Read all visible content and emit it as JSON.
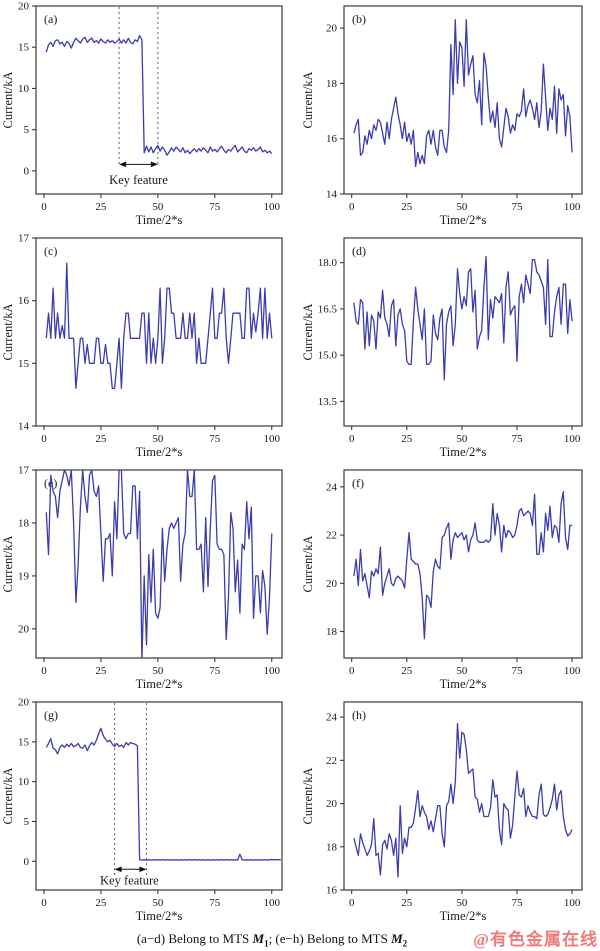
{
  "figure": {
    "caption": {
      "part1": "(a−d) Belong to MTS ",
      "m1": "M",
      "sub1": "1",
      "part2": "; (e−h) Belong to MTS ",
      "m2": "M",
      "sub2": "2"
    },
    "watermark": {
      "text": "@有色金属在线",
      "color": "#ed7d7d"
    }
  },
  "style": {
    "line_color": "#3c3cae",
    "axis_color": "#3a3a3a",
    "annotation_color": "#6f6f6f",
    "arrow_color": "#111111"
  },
  "chart_data": [
    {
      "id": "a",
      "panel_label": "(a)",
      "type": "line",
      "xlabel": "Time/2*s",
      "ylabel": "Current/kA",
      "xlim": [
        -3.5,
        104.5
      ],
      "xticks": [
        0,
        25,
        50,
        75,
        100
      ],
      "xtick_labels": [
        "0",
        "25",
        "50",
        "75",
        "100"
      ],
      "ylim_bottom": -2.8,
      "ylim_top": 20,
      "yticks": [
        0,
        5,
        10,
        15,
        20
      ],
      "ytick_labels": [
        "0",
        "5",
        "10",
        "15",
        "20"
      ],
      "margin_left": 36,
      "x_start": 1,
      "grid": false,
      "legend": "none",
      "annotation": {
        "label": "Key feature",
        "line_x": [
          33,
          50
        ],
        "line_y_bottom": 0.5,
        "arrow_y": 0.8,
        "label_x": 41.5,
        "label_y": -1.6
      },
      "values": [
        14.4,
        15.3,
        15.6,
        15.1,
        15.8,
        15.9,
        15.4,
        15.6,
        15.1,
        15.7,
        15.5,
        14.9,
        15.6,
        16.1,
        15.8,
        15.5,
        16.0,
        16.2,
        15.6,
        15.9,
        16.1,
        15.6,
        15.8,
        15.5,
        16.0,
        15.7,
        15.5,
        15.9,
        15.6,
        15.8,
        15.5,
        15.7,
        16.0,
        15.5,
        15.9,
        15.5,
        16.1,
        15.6,
        15.4,
        15.9,
        15.7,
        16.4,
        15.9,
        2.2,
        3.0,
        2.3,
        2.9,
        2.2,
        2.7,
        3.1,
        2.4,
        2.9,
        2.5,
        1.9,
        2.3,
        2.8,
        2.4,
        2.9,
        2.6,
        2.3,
        2.8,
        2.2,
        2.5,
        2.1,
        2.4,
        2.7,
        2.3,
        2.7,
        2.4,
        2.8,
        2.5,
        2.2,
        2.9,
        2.4,
        2.6,
        2.3,
        2.7,
        3.0,
        2.5,
        2.2,
        2.6,
        2.4,
        2.8,
        3.1,
        2.3,
        2.6,
        2.9,
        2.4,
        2.2,
        2.7,
        2.5,
        2.8,
        2.4,
        2.6,
        2.9,
        2.3,
        2.5,
        2.2,
        2.4,
        2.1
      ]
    },
    {
      "id": "b",
      "panel_label": "(b)",
      "type": "line",
      "xlabel": "Time/2*s",
      "ylabel": "Current/kA",
      "xlim": [
        -3.5,
        104.5
      ],
      "xticks": [
        0,
        25,
        50,
        75,
        100
      ],
      "xtick_labels": [
        "0",
        "25",
        "50",
        "75",
        "100"
      ],
      "ylim_bottom": 14,
      "ylim_top": 20.8,
      "yticks": [
        14,
        16,
        18,
        20
      ],
      "ytick_labels": [
        "14",
        "16",
        "18",
        "20"
      ],
      "margin_left": 44,
      "x_start": 1,
      "grid": false,
      "legend": "none",
      "values": [
        16.2,
        16.5,
        16.7,
        15.4,
        15.5,
        16.1,
        15.8,
        16.3,
        16.0,
        16.5,
        16.3,
        16.7,
        16.6,
        16.2,
        15.8,
        16.6,
        16.0,
        16.7,
        17.1,
        17.5,
        16.9,
        16.5,
        16.0,
        16.6,
        15.9,
        16.2,
        15.8,
        16.3,
        15.0,
        15.5,
        15.1,
        15.4,
        15.1,
        16.1,
        16.3,
        15.8,
        16.3,
        15.7,
        15.4,
        16.3,
        16.3,
        15.7,
        15.5,
        16.3,
        19.4,
        17.6,
        20.3,
        18.0,
        19.5,
        19.3,
        17.9,
        20.3,
        18.3,
        18.7,
        19.0,
        17.6,
        17.3,
        18.1,
        16.5,
        19.1,
        18.6,
        17.5,
        16.6,
        17.0,
        16.4,
        17.3,
        16.0,
        15.7,
        16.4,
        17.1,
        16.8,
        16.2,
        16.5,
        16.3,
        16.9,
        16.8,
        17.0,
        17.8,
        16.8,
        17.2,
        17.4,
        17.1,
        16.7,
        17.3,
        16.4,
        17.0,
        18.7,
        17.5,
        16.3,
        17.1,
        16.7,
        17.9,
        16.2,
        17.8,
        17.4,
        17.6,
        16.1,
        17.2,
        16.8,
        15.5
      ]
    },
    {
      "id": "c",
      "panel_label": "(c)",
      "type": "line",
      "xlabel": "Time/2*s",
      "ylabel": "Current/kA",
      "xlim": [
        -3.5,
        104.5
      ],
      "xticks": [
        0,
        25,
        50,
        75,
        100
      ],
      "xtick_labels": [
        "0",
        "25",
        "50",
        "75",
        "100"
      ],
      "ylim_bottom": 14,
      "ylim_top": 17,
      "yticks": [
        14,
        15,
        16,
        17
      ],
      "ytick_labels": [
        "14",
        "15",
        "16",
        "17"
      ],
      "margin_left": 36,
      "x_start": 1,
      "grid": false,
      "legend": "none",
      "values": [
        15.4,
        15.8,
        15.4,
        16.2,
        15.4,
        15.8,
        15.4,
        15.6,
        15.4,
        16.6,
        15.4,
        15.4,
        15.4,
        14.6,
        15.0,
        15.4,
        15.4,
        15.0,
        15.3,
        15.0,
        15.0,
        15.0,
        15.4,
        15.4,
        15.0,
        15.0,
        15.3,
        15.0,
        15.0,
        14.6,
        14.6,
        15.0,
        15.4,
        14.6,
        15.4,
        15.8,
        15.8,
        15.4,
        15.4,
        15.4,
        15.4,
        15.4,
        15.8,
        15.8,
        15.0,
        15.8,
        15.0,
        15.4,
        15.0,
        15.4,
        16.2,
        15.0,
        15.4,
        16.2,
        16.2,
        15.8,
        15.8,
        15.4,
        15.4,
        15.4,
        15.8,
        15.4,
        15.4,
        15.8,
        15.4,
        15.8,
        15.0,
        15.4,
        15.0,
        15.0,
        15.0,
        15.4,
        15.8,
        16.2,
        15.4,
        15.4,
        15.8,
        15.8,
        16.2,
        15.4,
        15.0,
        15.4,
        15.8,
        15.8,
        15.8,
        15.8,
        15.4,
        15.4,
        16.2,
        16.2,
        15.4,
        15.8,
        15.5,
        15.8,
        16.2,
        15.4,
        16.2,
        15.4,
        15.8,
        15.4
      ]
    },
    {
      "id": "d",
      "panel_label": "(d)",
      "type": "line",
      "xlabel": "Time/2*s",
      "ylabel": "Current/kA",
      "xlim": [
        -3.5,
        104.5
      ],
      "xticks": [
        0,
        25,
        50,
        75,
        100
      ],
      "xtick_labels": [
        "0",
        "25",
        "50",
        "75",
        "100"
      ],
      "ylim_bottom": 12.7,
      "ylim_top": 18.8,
      "yticks": [
        13.5,
        15.0,
        16.5,
        18.0
      ],
      "ytick_labels": [
        "13.5",
        "15.0",
        "16.5",
        "18.0"
      ],
      "margin_left": 44,
      "x_start": 1,
      "grid": false,
      "legend": "none",
      "values": [
        16.7,
        16.1,
        16.0,
        16.8,
        16.7,
        15.2,
        16.4,
        15.3,
        16.3,
        16.1,
        15.2,
        16.4,
        16.2,
        17.1,
        16.2,
        16.0,
        15.6,
        16.6,
        16.8,
        15.3,
        16.3,
        16.5,
        16.0,
        15.8,
        14.8,
        14.7,
        14.7,
        16.1,
        17.2,
        16.5,
        16.0,
        15.5,
        16.5,
        14.7,
        14.7,
        14.8,
        16.3,
        15.7,
        15.5,
        16.2,
        16.5,
        14.2,
        16.0,
        16.4,
        16.6,
        15.3,
        16.0,
        17.8,
        17.0,
        16.5,
        16.9,
        16.6,
        17.7,
        17.8,
        16.4,
        17.1,
        15.2,
        15.6,
        15.8,
        17.2,
        18.2,
        15.5,
        16.8,
        16.2,
        16.9,
        16.8,
        16.7,
        17.0,
        15.4,
        17.2,
        17.7,
        16.3,
        16.5,
        16.6,
        14.8,
        16.9,
        17.3,
        16.7,
        17.6,
        17.3,
        17.0,
        18.1,
        18.1,
        17.7,
        17.6,
        17.4,
        17.2,
        16.0,
        18.1,
        15.6,
        15.6,
        16.4,
        16.9,
        17.2,
        16.0,
        17.3,
        17.3,
        15.7,
        16.8,
        16.1
      ]
    },
    {
      "id": "e",
      "panel_label": "(e)",
      "type": "line",
      "xlabel": "Time/2*s",
      "ylabel": "Current/kA",
      "xlim": [
        -3.5,
        104.5
      ],
      "xticks": [
        0,
        25,
        50,
        75,
        100
      ],
      "xtick_labels": [
        "0",
        "25",
        "50",
        "75",
        "100"
      ],
      "ylim_bottom": 20.55,
      "ylim_top": 17,
      "yticks": [
        17,
        18,
        19,
        20
      ],
      "ytick_labels": [
        "17",
        "18",
        "19",
        "20"
      ],
      "margin_left": 36,
      "x_start": 1,
      "grid": false,
      "legend": "none",
      "y_axis_inverted": true,
      "values": [
        17.8,
        18.6,
        17.1,
        17.4,
        17.5,
        17.9,
        17.4,
        17.2,
        17.0,
        17.1,
        17.3,
        17.0,
        18.0,
        19.5,
        18.8,
        17.7,
        17.0,
        17.5,
        17.8,
        17.1,
        17.0,
        17.4,
        17.5,
        17.3,
        18.2,
        19.1,
        18.3,
        18.3,
        18.2,
        19.0,
        17.6,
        18.3,
        17.0,
        17.0,
        18.2,
        18.3,
        18.2,
        18.2,
        17.3,
        17.3,
        18.3,
        17.4,
        20.6,
        19.0,
        20.3,
        18.6,
        19.5,
        18.5,
        19.7,
        19.8,
        19.6,
        18.1,
        19.1,
        18.5,
        18.1,
        18.0,
        18.1,
        18.0,
        17.9,
        19.1,
        18.4,
        18.2,
        17.0,
        17.5,
        17.5,
        17.0,
        18.5,
        18.5,
        18.4,
        19.3,
        17.9,
        19.2,
        18.1,
        17.2,
        17.1,
        18.4,
        18.5,
        18.5,
        18.6,
        20.2,
        19.4,
        17.8,
        18.1,
        19.3,
        18.7,
        19.7,
        18.4,
        18.5,
        17.6,
        18.3,
        17.7,
        19.8,
        19.0,
        19.0,
        19.7,
        18.9,
        19.2,
        20.1,
        19.4,
        18.2
      ]
    },
    {
      "id": "f",
      "panel_label": "(f)",
      "type": "line",
      "xlabel": "Time/2*s",
      "ylabel": "Current/kA",
      "xlim": [
        -3.5,
        104.5
      ],
      "xticks": [
        0,
        25,
        50,
        75,
        100
      ],
      "xtick_labels": [
        "0",
        "25",
        "50",
        "75",
        "100"
      ],
      "ylim_bottom": 16.9,
      "ylim_top": 24.7,
      "yticks": [
        18,
        20,
        22,
        24
      ],
      "ytick_labels": [
        "18",
        "20",
        "22",
        "24"
      ],
      "margin_left": 44,
      "x_start": 1,
      "grid": false,
      "legend": "none",
      "values": [
        20.3,
        21.0,
        19.9,
        21.4,
        20.1,
        20.4,
        19.9,
        19.4,
        20.5,
        20.3,
        20.6,
        20.4,
        21.5,
        19.5,
        20.0,
        20.3,
        20.6,
        20.0,
        19.9,
        20.2,
        20.3,
        20.2,
        20.1,
        19.8,
        21.0,
        22.1,
        21.0,
        20.9,
        20.8,
        20.8,
        20.4,
        19.4,
        17.7,
        19.5,
        19.4,
        19.0,
        20.5,
        21.0,
        20.7,
        20.6,
        21.9,
        22.0,
        22.3,
        22.5,
        21.0,
        21.8,
        22.1,
        21.9,
        22.0,
        22.1,
        21.8,
        22.0,
        21.3,
        21.8,
        22.0,
        22.5,
        21.8,
        21.7,
        21.7,
        21.7,
        21.8,
        21.7,
        21.8,
        23.3,
        22.0,
        22.9,
        22.4,
        21.3,
        22.4,
        21.9,
        22.2,
        22.1,
        21.9,
        22.0,
        22.4,
        23.0,
        23.1,
        22.8,
        22.9,
        23.0,
        22.9,
        22.4,
        23.7,
        21.2,
        21.2,
        22.1,
        21.3,
        22.9,
        22.2,
        23.2,
        21.9,
        22.4,
        22.3,
        21.7,
        23.3,
        23.8,
        21.9,
        21.4,
        22.4,
        22.4
      ]
    },
    {
      "id": "g",
      "panel_label": "(g)",
      "type": "line",
      "xlabel": "Time/2*s",
      "ylabel": "Current/kA",
      "xlim": [
        -3.5,
        104.5
      ],
      "xticks": [
        0,
        25,
        50,
        75,
        100
      ],
      "xtick_labels": [
        "0",
        "25",
        "50",
        "75",
        "100"
      ],
      "ylim_bottom": -3.6,
      "ylim_top": 20,
      "yticks": [
        0,
        5,
        10,
        15,
        20
      ],
      "ytick_labels": [
        "0",
        "5",
        "10",
        "15",
        "20"
      ],
      "margin_left": 36,
      "x_start": 1,
      "grid": false,
      "legend": "none",
      "annotation": {
        "label": "Key feature",
        "line_x": [
          31,
          45
        ],
        "line_y_bottom": -1.8,
        "arrow_y": -1.0,
        "label_x": 37.5,
        "label_y": -2.9
      },
      "values": [
        14.3,
        14.8,
        15.4,
        14.2,
        14.0,
        13.5,
        14.3,
        14.6,
        14.3,
        14.7,
        14.4,
        14.8,
        14.4,
        14.5,
        14.8,
        14.3,
        14.2,
        14.6,
        13.9,
        14.5,
        14.9,
        14.6,
        15.2,
        16.0,
        16.7,
        15.8,
        15.3,
        15.0,
        15.2,
        14.7,
        14.4,
        14.8,
        14.4,
        14.6,
        14.3,
        14.9,
        14.6,
        14.9,
        14.8,
        14.7,
        14.5,
        0.2,
        0.15,
        0.2,
        0.15,
        0.2,
        0.15,
        0.2,
        0.15,
        0.2,
        0.15,
        0.2,
        0.15,
        0.2,
        0.15,
        0.2,
        0.15,
        0.2,
        0.15,
        0.2,
        0.15,
        0.2,
        0.15,
        0.2,
        0.15,
        0.2,
        0.15,
        0.2,
        0.15,
        0.2,
        0.15,
        0.2,
        0.15,
        0.2,
        0.15,
        0.2,
        0.15,
        0.2,
        0.15,
        0.2,
        0.15,
        0.2,
        0.15,
        0.2,
        0.15,
        0.9,
        0.2,
        0.15,
        0.2,
        0.15,
        0.2,
        0.15,
        0.2,
        0.15,
        0.2,
        0.15,
        0.2,
        0.15,
        0.2,
        0.2,
        0.2,
        0.2,
        0.2,
        0.2
      ]
    },
    {
      "id": "h",
      "panel_label": "(h)",
      "type": "line",
      "xlabel": "Time/2*s",
      "ylabel": "Current/kA",
      "xlim": [
        -3.5,
        104.5
      ],
      "xticks": [
        0,
        25,
        50,
        75,
        100
      ],
      "xtick_labels": [
        "0",
        "25",
        "50",
        "75",
        "100"
      ],
      "ylim_bottom": 16,
      "ylim_top": 24.7,
      "yticks": [
        16,
        18,
        20,
        22,
        24
      ],
      "ytick_labels": [
        "16",
        "18",
        "20",
        "22",
        "24"
      ],
      "margin_left": 44,
      "x_start": 1,
      "grid": false,
      "legend": "none",
      "values": [
        18.4,
        18.0,
        17.6,
        18.6,
        18.2,
        17.9,
        17.6,
        17.8,
        18.1,
        19.3,
        17.6,
        17.7,
        16.7,
        18.1,
        18.3,
        17.9,
        18.6,
        18.3,
        17.6,
        18.4,
        16.6,
        19.9,
        17.7,
        18.4,
        18.0,
        18.9,
        18.9,
        19.1,
        19.8,
        20.6,
        19.4,
        19.9,
        19.6,
        19.4,
        18.8,
        19.2,
        18.7,
        19.3,
        19.9,
        19.9,
        18.6,
        18.0,
        19.9,
        20.1,
        20.9,
        20.0,
        21.0,
        23.7,
        22.1,
        23.3,
        23.2,
        22.5,
        21.4,
        21.5,
        21.6,
        20.3,
        20.2,
        19.6,
        20.0,
        19.4,
        19.4,
        19.4,
        19.8,
        21.1,
        20.3,
        20.4,
        18.8,
        18.1,
        20.0,
        19.8,
        19.7,
        18.4,
        19.0,
        20.3,
        21.5,
        20.4,
        20.3,
        20.7,
        19.4,
        19.9,
        19.6,
        19.4,
        19.4,
        19.3,
        20.4,
        20.9,
        19.5,
        19.4,
        19.5,
        19.8,
        20.2,
        20.9,
        19.7,
        20.4,
        20.6,
        19.4,
        18.8,
        18.5,
        18.6,
        18.8
      ]
    }
  ]
}
